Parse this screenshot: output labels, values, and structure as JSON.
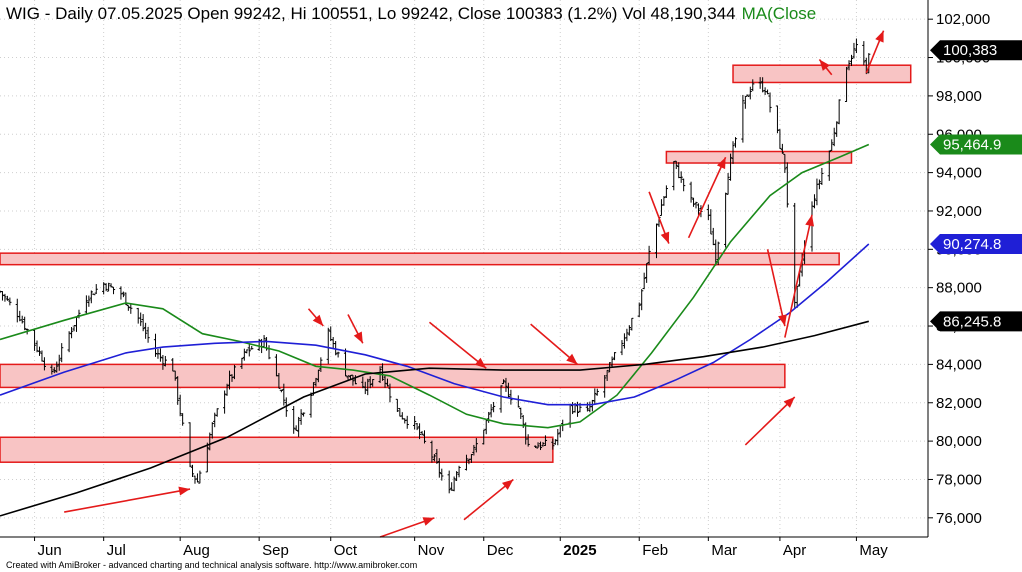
{
  "header": {
    "title_text": "WIG - Daily 07.05.2025 Open 99242, Hi 100551, Lo 99242, Close 100383 (1.2%) Vol 48,190,344",
    "ma_text": "MA(Close"
  },
  "footer": {
    "credit": "Created with AmiBroker - advanced charting and technical analysis software. http://www.amibroker.com"
  },
  "colors": {
    "background": "#ffffff",
    "candle": "#000000",
    "ma_short": "#1a8a1a",
    "ma_mid": "#1f1fd6",
    "ma_long": "#000000",
    "zone_fill": "#f8c4c4",
    "zone_stroke": "#e41a1a",
    "arrow": "#e41a1a",
    "grid": "#cfcfcf"
  },
  "chart_data": {
    "type": "candlestick",
    "title": "WIG - Daily 07.05.2025",
    "ohlc_last": {
      "open": 99242,
      "high": 100551,
      "low": 99242,
      "close": 100383,
      "change_pct": "1.2%",
      "volume": "48,190,344"
    },
    "x_range": [
      "2024-05-20",
      "2025-05-31"
    ],
    "y_range": [
      75000,
      103000
    ],
    "grid": true,
    "x_ticks": [
      {
        "label": "Jun",
        "date": "2024-06-03"
      },
      {
        "label": "Jul",
        "date": "2024-07-01"
      },
      {
        "label": "Aug",
        "date": "2024-08-01"
      },
      {
        "label": "Sep",
        "date": "2024-09-02"
      },
      {
        "label": "Oct",
        "date": "2024-10-01"
      },
      {
        "label": "Nov",
        "date": "2024-11-04"
      },
      {
        "label": "Dec",
        "date": "2024-12-02"
      },
      {
        "label": "2025",
        "date": "2025-01-02"
      },
      {
        "label": "Feb",
        "date": "2025-02-03"
      },
      {
        "label": "Mar",
        "date": "2025-03-03"
      },
      {
        "label": "Apr",
        "date": "2025-04-01"
      },
      {
        "label": "May",
        "date": "2025-05-02"
      }
    ],
    "y_ticks": [
      {
        "label": "76,000",
        "value": 76000
      },
      {
        "label": "78,000",
        "value": 78000
      },
      {
        "label": "80,000",
        "value": 80000
      },
      {
        "label": "82,000",
        "value": 82000
      },
      {
        "label": "84,000",
        "value": 84000
      },
      {
        "label": "86,000",
        "value": 86000
      },
      {
        "label": "88,000",
        "value": 88000
      },
      {
        "label": "90,000",
        "value": 90000
      },
      {
        "label": "92,000",
        "value": 92000
      },
      {
        "label": "94,000",
        "value": 94000
      },
      {
        "label": "96,000",
        "value": 96000
      },
      {
        "label": "98,000",
        "value": 98000
      },
      {
        "label": "100,000",
        "value": 100000
      },
      {
        "label": "102,000",
        "value": 102000
      }
    ],
    "price_path": [
      {
        "date": "2024-05-20",
        "close": 87800
      },
      {
        "date": "2024-05-28",
        "close": 86500
      },
      {
        "date": "2024-06-05",
        "close": 84600
      },
      {
        "date": "2024-06-10",
        "close": 83400
      },
      {
        "date": "2024-06-17",
        "close": 85600
      },
      {
        "date": "2024-06-24",
        "close": 87500
      },
      {
        "date": "2024-07-01",
        "close": 88200
      },
      {
        "date": "2024-07-08",
        "close": 87700
      },
      {
        "date": "2024-07-15",
        "close": 86400
      },
      {
        "date": "2024-07-22",
        "close": 84600
      },
      {
        "date": "2024-07-29",
        "close": 83800
      },
      {
        "date": "2024-08-05",
        "close": 78500
      },
      {
        "date": "2024-08-08",
        "close": 77900
      },
      {
        "date": "2024-08-14",
        "close": 80800
      },
      {
        "date": "2024-08-20",
        "close": 83000
      },
      {
        "date": "2024-08-28",
        "close": 84700
      },
      {
        "date": "2024-09-04",
        "close": 85200
      },
      {
        "date": "2024-09-10",
        "close": 83000
      },
      {
        "date": "2024-09-16",
        "close": 80500
      },
      {
        "date": "2024-09-23",
        "close": 82600
      },
      {
        "date": "2024-09-30",
        "close": 85600
      },
      {
        "date": "2024-10-07",
        "close": 83600
      },
      {
        "date": "2024-10-14",
        "close": 82600
      },
      {
        "date": "2024-10-21",
        "close": 83800
      },
      {
        "date": "2024-10-28",
        "close": 81500
      },
      {
        "date": "2024-11-04",
        "close": 80800
      },
      {
        "date": "2024-11-12",
        "close": 79000
      },
      {
        "date": "2024-11-18",
        "close": 77300
      },
      {
        "date": "2024-11-22",
        "close": 78800
      },
      {
        "date": "2024-11-28",
        "close": 79500
      },
      {
        "date": "2024-12-05",
        "close": 81600
      },
      {
        "date": "2024-12-10",
        "close": 82900
      },
      {
        "date": "2024-12-16",
        "close": 81800
      },
      {
        "date": "2024-12-20",
        "close": 79800
      },
      {
        "date": "2024-12-30",
        "close": 79800
      },
      {
        "date": "2025-01-06",
        "close": 81800
      },
      {
        "date": "2025-01-13",
        "close": 81500
      },
      {
        "date": "2025-01-20",
        "close": 83300
      },
      {
        "date": "2025-01-27",
        "close": 85200
      },
      {
        "date": "2025-02-03",
        "close": 87200
      },
      {
        "date": "2025-02-07",
        "close": 89800
      },
      {
        "date": "2025-02-12",
        "close": 92300
      },
      {
        "date": "2025-02-17",
        "close": 94500
      },
      {
        "date": "2025-02-24",
        "close": 92500
      },
      {
        "date": "2025-03-03",
        "close": 91600
      },
      {
        "date": "2025-03-06",
        "close": 89600
      },
      {
        "date": "2025-03-11",
        "close": 94000
      },
      {
        "date": "2025-03-17",
        "close": 97500
      },
      {
        "date": "2025-03-21",
        "close": 98700
      },
      {
        "date": "2025-03-26",
        "close": 98400
      },
      {
        "date": "2025-03-31",
        "close": 96000
      },
      {
        "date": "2025-04-03",
        "close": 94300
      },
      {
        "date": "2025-04-07",
        "close": 87000
      },
      {
        "date": "2025-04-10",
        "close": 89500
      },
      {
        "date": "2025-04-15",
        "close": 92800
      },
      {
        "date": "2025-04-22",
        "close": 95500
      },
      {
        "date": "2025-04-28",
        "close": 99600
      },
      {
        "date": "2025-05-02",
        "close": 100600
      },
      {
        "date": "2025-05-06",
        "close": 99200
      },
      {
        "date": "2025-05-07",
        "close": 100383
      }
    ],
    "series": [
      {
        "name": "MA(Close",
        "color": "#1a8a1a",
        "last_value": 95464.9,
        "label": "95,464.9",
        "points": [
          {
            "date": "2024-05-20",
            "value": 85300
          },
          {
            "date": "2024-06-15",
            "value": 86300
          },
          {
            "date": "2024-07-10",
            "value": 87200
          },
          {
            "date": "2024-07-25",
            "value": 86900
          },
          {
            "date": "2024-08-10",
            "value": 85600
          },
          {
            "date": "2024-08-25",
            "value": 85200
          },
          {
            "date": "2024-09-10",
            "value": 84700
          },
          {
            "date": "2024-09-25",
            "value": 83900
          },
          {
            "date": "2024-10-10",
            "value": 83700
          },
          {
            "date": "2024-10-25",
            "value": 83400
          },
          {
            "date": "2024-11-10",
            "value": 82400
          },
          {
            "date": "2024-11-25",
            "value": 81400
          },
          {
            "date": "2024-12-10",
            "value": 80900
          },
          {
            "date": "2024-12-28",
            "value": 80700
          },
          {
            "date": "2025-01-10",
            "value": 81000
          },
          {
            "date": "2025-01-25",
            "value": 82400
          },
          {
            "date": "2025-02-08",
            "value": 84600
          },
          {
            "date": "2025-02-25",
            "value": 87500
          },
          {
            "date": "2025-03-12",
            "value": 90400
          },
          {
            "date": "2025-03-28",
            "value": 92800
          },
          {
            "date": "2025-04-10",
            "value": 94000
          },
          {
            "date": "2025-04-25",
            "value": 94800
          },
          {
            "date": "2025-05-07",
            "value": 95465
          }
        ]
      },
      {
        "name": "",
        "color": "#1f1fd6",
        "last_value": 90274.8,
        "label": "90,274.8",
        "points": [
          {
            "date": "2024-05-20",
            "value": 82400
          },
          {
            "date": "2024-06-15",
            "value": 83600
          },
          {
            "date": "2024-07-10",
            "value": 84600
          },
          {
            "date": "2024-07-25",
            "value": 84900
          },
          {
            "date": "2024-08-15",
            "value": 85100
          },
          {
            "date": "2024-09-05",
            "value": 85200
          },
          {
            "date": "2024-09-25",
            "value": 85000
          },
          {
            "date": "2024-10-15",
            "value": 84500
          },
          {
            "date": "2024-11-01",
            "value": 83900
          },
          {
            "date": "2024-11-20",
            "value": 83000
          },
          {
            "date": "2024-12-10",
            "value": 82300
          },
          {
            "date": "2024-12-28",
            "value": 81900
          },
          {
            "date": "2025-01-15",
            "value": 81900
          },
          {
            "date": "2025-02-01",
            "value": 82300
          },
          {
            "date": "2025-02-18",
            "value": 83200
          },
          {
            "date": "2025-03-05",
            "value": 84100
          },
          {
            "date": "2025-03-20",
            "value": 85300
          },
          {
            "date": "2025-04-05",
            "value": 86700
          },
          {
            "date": "2025-04-20",
            "value": 88300
          },
          {
            "date": "2025-05-07",
            "value": 90275
          }
        ]
      },
      {
        "name": "",
        "color": "#000000",
        "last_value": 86245.8,
        "label": "86,245.8",
        "points": [
          {
            "date": "2024-05-20",
            "value": 76100
          },
          {
            "date": "2024-06-20",
            "value": 77300
          },
          {
            "date": "2024-07-20",
            "value": 78600
          },
          {
            "date": "2024-08-20",
            "value": 80200
          },
          {
            "date": "2024-09-20",
            "value": 82300
          },
          {
            "date": "2024-10-15",
            "value": 83500
          },
          {
            "date": "2024-11-10",
            "value": 83800
          },
          {
            "date": "2024-12-10",
            "value": 83700
          },
          {
            "date": "2025-01-10",
            "value": 83700
          },
          {
            "date": "2025-02-05",
            "value": 84000
          },
          {
            "date": "2025-03-01",
            "value": 84400
          },
          {
            "date": "2025-03-25",
            "value": 84900
          },
          {
            "date": "2025-04-15",
            "value": 85500
          },
          {
            "date": "2025-05-07",
            "value": 86246
          }
        ]
      }
    ],
    "last_close_label": "100,383",
    "zones": [
      {
        "from": "2024-05-20",
        "to": "2025-04-03",
        "low": 82800,
        "high": 84000
      },
      {
        "from": "2024-05-20",
        "to": "2024-12-30",
        "low": 78900,
        "high": 80200
      },
      {
        "from": "2024-05-20",
        "to": "2025-04-25",
        "low": 89200,
        "high": 89800
      },
      {
        "from": "2025-02-14",
        "to": "2025-04-30",
        "low": 94500,
        "high": 95100
      },
      {
        "from": "2025-03-13",
        "to": "2025-05-24",
        "low": 98700,
        "high": 99600
      }
    ],
    "arrows": [
      {
        "from": {
          "date": "2024-06-15",
          "value": 76300
        },
        "to": {
          "date": "2024-08-05",
          "value": 77500
        }
      },
      {
        "from": {
          "date": "2024-09-22",
          "value": 86900
        },
        "to": {
          "date": "2024-09-28",
          "value": 86000
        }
      },
      {
        "from": {
          "date": "2024-10-08",
          "value": 86600
        },
        "to": {
          "date": "2024-10-14",
          "value": 85100
        }
      },
      {
        "from": {
          "date": "2024-11-10",
          "value": 86200
        },
        "to": {
          "date": "2024-12-03",
          "value": 83800
        }
      },
      {
        "from": {
          "date": "2024-12-21",
          "value": 86100
        },
        "to": {
          "date": "2025-01-09",
          "value": 84000
        }
      },
      {
        "from": {
          "date": "2024-10-21",
          "value": 75000
        },
        "to": {
          "date": "2024-11-12",
          "value": 76000
        }
      },
      {
        "from": {
          "date": "2024-11-24",
          "value": 75900
        },
        "to": {
          "date": "2024-12-14",
          "value": 78000
        }
      },
      {
        "from": {
          "date": "2025-02-07",
          "value": 93000
        },
        "to": {
          "date": "2025-02-15",
          "value": 90300
        }
      },
      {
        "from": {
          "date": "2025-02-23",
          "value": 90600
        },
        "to": {
          "date": "2025-03-10",
          "value": 94800
        }
      },
      {
        "from": {
          "date": "2025-03-18",
          "value": 79800
        },
        "to": {
          "date": "2025-04-07",
          "value": 82300
        }
      },
      {
        "from": {
          "date": "2025-03-27",
          "value": 90000
        },
        "to": {
          "date": "2025-04-03",
          "value": 86000
        }
      },
      {
        "from": {
          "date": "2025-04-03",
          "value": 85400
        },
        "to": {
          "date": "2025-04-14",
          "value": 91800
        }
      },
      {
        "from": {
          "date": "2025-04-22",
          "value": 99100
        },
        "to": {
          "date": "2025-04-17",
          "value": 99900
        }
      },
      {
        "from": {
          "date": "2025-05-06",
          "value": 99200
        },
        "to": {
          "date": "2025-05-13",
          "value": 101400
        }
      }
    ]
  }
}
